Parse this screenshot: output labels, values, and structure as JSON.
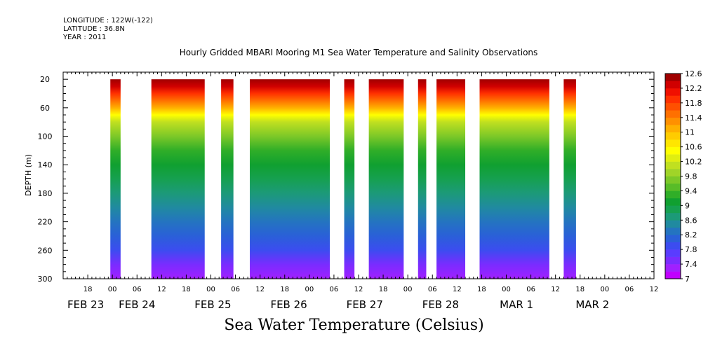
{
  "header": {
    "longitude": "LONGITUDE : 122W(-122)",
    "latitude": "LATITUDE : 36.8N",
    "year": "YEAR : 2011",
    "title": "Hourly Gridded MBARI Mooring M1 Sea Water Temperature and Salinity Observations"
  },
  "bottom_title": "Sea Water Temperature (Celsius)",
  "chart_data": {
    "type": "heatmap",
    "title": "Hourly Gridded MBARI Mooring M1 Sea Water Temperature and Salinity Observations",
    "xlabel": "",
    "ylabel": "DEPTH (m)",
    "x_range_hours_from_feb23_00": [
      -12,
      132
    ],
    "y_range_depth_m": [
      300,
      10
    ],
    "y_inverted": true,
    "y_ticks": [
      20,
      60,
      100,
      140,
      180,
      220,
      260,
      300
    ],
    "x_tick_labels": [
      {
        "h": -6,
        "label": "18"
      },
      {
        "h": 0,
        "label": "00"
      },
      {
        "h": 6,
        "label": "06"
      },
      {
        "h": 12,
        "label": "12"
      },
      {
        "h": 18,
        "label": "18"
      },
      {
        "h": 24,
        "label": "00"
      },
      {
        "h": 30,
        "label": "06"
      },
      {
        "h": 36,
        "label": "12"
      },
      {
        "h": 42,
        "label": "18"
      },
      {
        "h": 48,
        "label": "00"
      },
      {
        "h": 54,
        "label": "06"
      },
      {
        "h": 60,
        "label": "12"
      },
      {
        "h": 66,
        "label": "18"
      },
      {
        "h": 72,
        "label": "00"
      },
      {
        "h": 78,
        "label": "06"
      },
      {
        "h": 84,
        "label": "12"
      },
      {
        "h": 90,
        "label": "18"
      },
      {
        "h": 96,
        "label": "00"
      },
      {
        "h": 102,
        "label": "06"
      },
      {
        "h": 108,
        "label": "12"
      },
      {
        "h": 114,
        "label": "18"
      },
      {
        "h": 120,
        "label": "00"
      },
      {
        "h": 126,
        "label": "06"
      },
      {
        "h": 132,
        "label": "12"
      }
    ],
    "date_labels": [
      {
        "h": -6.5,
        "label": "FEB 23"
      },
      {
        "h": 6,
        "label": "FEB 24"
      },
      {
        "h": 24.5,
        "label": "FEB 25"
      },
      {
        "h": 43,
        "label": "FEB 26"
      },
      {
        "h": 61.5,
        "label": "FEB 27"
      },
      {
        "h": 80,
        "label": "FEB 28"
      },
      {
        "h": 98.5,
        "label": "MAR  1"
      },
      {
        "h": 117,
        "label": "MAR  2"
      }
    ],
    "data_segments_hours": [
      [
        -0.5,
        2
      ],
      [
        9.5,
        22.5
      ],
      [
        26.5,
        29.5
      ],
      [
        33.5,
        53
      ],
      [
        56.5,
        59
      ],
      [
        62.5,
        71
      ],
      [
        74.5,
        76.5
      ],
      [
        79,
        86
      ],
      [
        89.5,
        106.5
      ],
      [
        110,
        113
      ]
    ],
    "colorbar": {
      "levels": [
        7,
        7.2,
        7.4,
        7.6,
        7.8,
        8,
        8.2,
        8.4,
        8.6,
        8.8,
        9,
        9.2,
        9.4,
        9.6,
        9.8,
        10,
        10.2,
        10.4,
        10.6,
        10.8,
        11,
        11.2,
        11.4,
        11.6,
        11.8,
        12,
        12.2,
        12.4,
        12.6
      ],
      "labels": [
        "7",
        "7.4",
        "7.8",
        "8.2",
        "8.6",
        "9",
        "9.4",
        "9.8",
        "10.2",
        "10.6",
        "11",
        "11.4",
        "11.8",
        "12.2",
        "12.6"
      ],
      "colors": [
        "#c000ff",
        "#a020ff",
        "#7a2cff",
        "#5a3cff",
        "#3c4cf0",
        "#2a60d8",
        "#2474c0",
        "#208aa0",
        "#1c9a78",
        "#16a050",
        "#10a030",
        "#30ae28",
        "#58bc28",
        "#7cc828",
        "#a0d428",
        "#c0e020",
        "#e0ee10",
        "#ffff00",
        "#ffe600",
        "#ffcc00",
        "#ffb000",
        "#ff9000",
        "#ff7000",
        "#ff5000",
        "#ff3000",
        "#f01000",
        "#d00000",
        "#a00000"
      ]
    },
    "temperature_profile": [
      {
        "depth": 20,
        "temp": 12.4
      },
      {
        "depth": 30,
        "temp": 12.2
      },
      {
        "depth": 40,
        "temp": 11.9
      },
      {
        "depth": 50,
        "temp": 11.5
      },
      {
        "depth": 60,
        "temp": 11.0
      },
      {
        "depth": 70,
        "temp": 10.5
      },
      {
        "depth": 80,
        "temp": 10.0
      },
      {
        "depth": 100,
        "temp": 9.6
      },
      {
        "depth": 120,
        "temp": 9.3
      },
      {
        "depth": 140,
        "temp": 9.1
      },
      {
        "depth": 160,
        "temp": 8.9
      },
      {
        "depth": 180,
        "temp": 8.7
      },
      {
        "depth": 200,
        "temp": 8.5
      },
      {
        "depth": 220,
        "temp": 8.3
      },
      {
        "depth": 240,
        "temp": 8.0
      },
      {
        "depth": 260,
        "temp": 7.8
      },
      {
        "depth": 280,
        "temp": 7.5
      },
      {
        "depth": 300,
        "temp": 7.2
      }
    ]
  }
}
